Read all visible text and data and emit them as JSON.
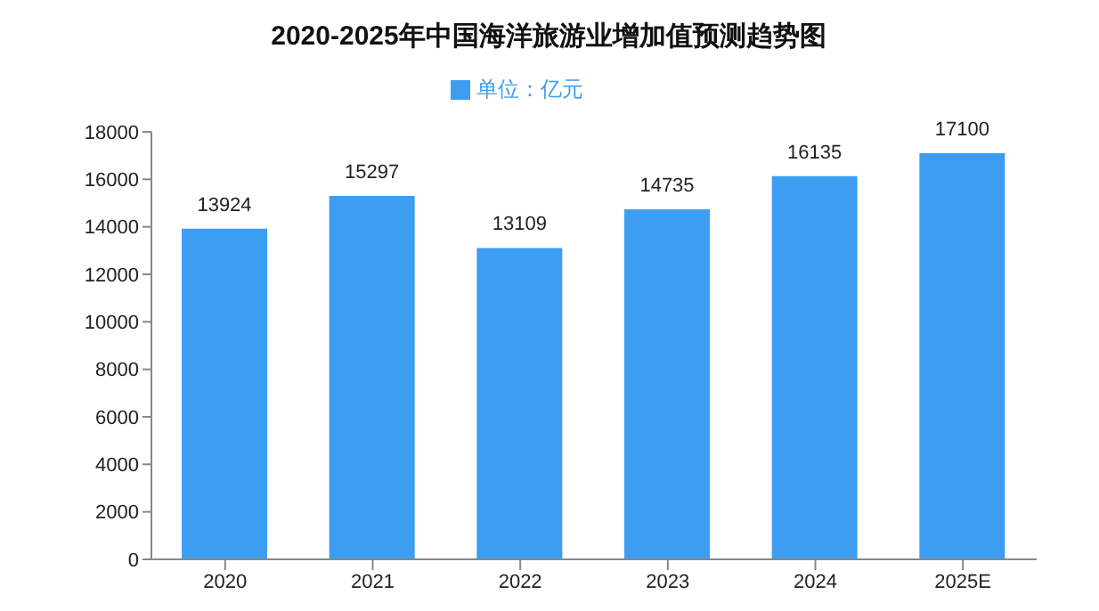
{
  "chart_data": {
    "type": "bar",
    "title": "2020-2025年中国海洋旅游业增加值预测趋势图",
    "categories": [
      "2020",
      "2021",
      "2022",
      "2023",
      "2024",
      "2025E"
    ],
    "series": [
      {
        "name": "单位：亿元",
        "color": "#3d9df0",
        "values": [
          13924,
          15297,
          13109,
          14735,
          16135,
          17100
        ]
      }
    ],
    "ylim": [
      0,
      18000
    ],
    "yticks": [
      0,
      2000,
      4000,
      6000,
      8000,
      10000,
      12000,
      14000,
      16000,
      18000
    ],
    "grid": false,
    "legend": "top",
    "data_labels": true
  }
}
